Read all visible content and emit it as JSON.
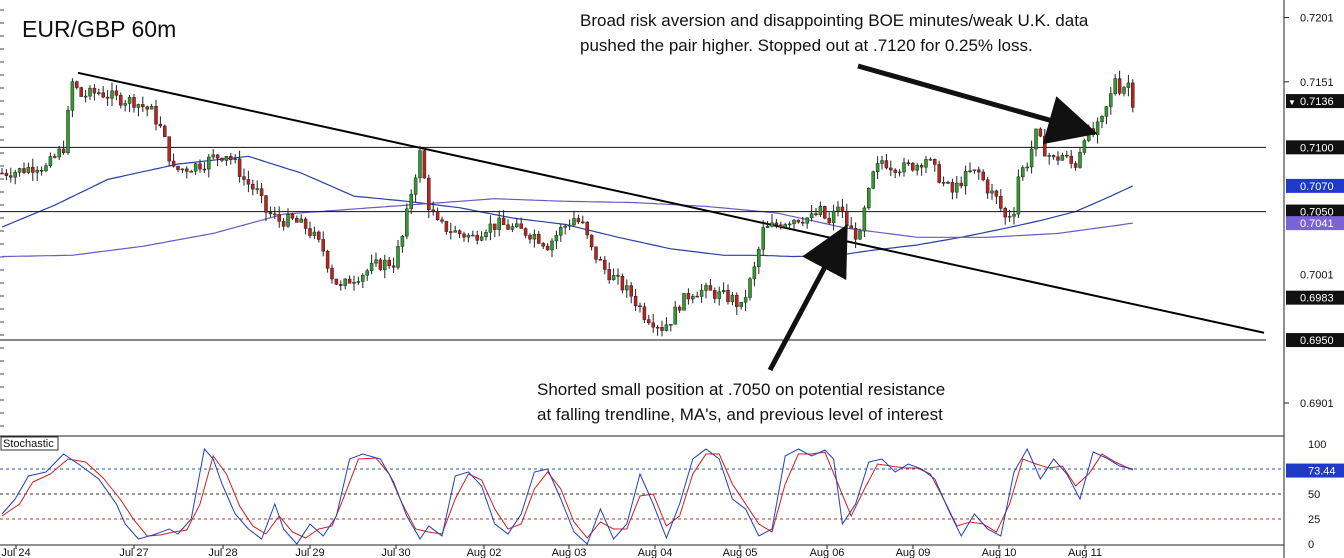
{
  "chart_data": {
    "type": "candlestick",
    "title": "EUR/GBP 60m",
    "price_axis": {
      "ylim": [
        0.688,
        0.721
      ],
      "ticks": [
        "0.7201",
        "0.7151",
        "0.6901"
      ],
      "tick_values": [
        0.7201,
        0.7151,
        0.6901
      ],
      "labels": [
        {
          "text": "0.7136",
          "value": 0.7136,
          "style": "current"
        },
        {
          "text": "0.7100",
          "value": 0.71,
          "style": "level"
        },
        {
          "text": "0.7070",
          "value": 0.707,
          "style": "ma"
        },
        {
          "text": "0.7050",
          "value": 0.705,
          "style": "level"
        },
        {
          "text": "0.7041",
          "value": 0.7041,
          "style": "ma2"
        },
        {
          "text": "0.7001",
          "value": 0.7001,
          "style": "tick"
        },
        {
          "text": "0.6983",
          "value": 0.6983,
          "style": "level"
        },
        {
          "text": "0.6950",
          "value": 0.695,
          "style": "level"
        }
      ]
    },
    "dates": [
      "Jul 24",
      "Jul 27",
      "Jul 28",
      "Jul 29",
      "Jul 30",
      "Aug 02",
      "Aug 03",
      "Aug 04",
      "Aug 05",
      "Aug 06",
      "Aug 09",
      "Aug 10",
      "Aug 11"
    ],
    "horizontal_levels": [
      0.71,
      0.705,
      0.695
    ],
    "trendline": {
      "from_date": "Jul 24",
      "from_price": 0.7158,
      "to_date": "Aug 11",
      "to_price": 0.6965
    },
    "price_path": [
      [
        0,
        0.708
      ],
      [
        4,
        0.7082
      ],
      [
        8,
        0.7086
      ],
      [
        10,
        0.7084
      ],
      [
        12,
        0.7092
      ],
      [
        14,
        0.71
      ],
      [
        16,
        0.715
      ],
      [
        18,
        0.714
      ],
      [
        22,
        0.7143
      ],
      [
        26,
        0.7138
      ],
      [
        30,
        0.7136
      ],
      [
        34,
        0.7128
      ],
      [
        36,
        0.7115
      ],
      [
        37,
        0.7105
      ],
      [
        39,
        0.7082
      ],
      [
        42,
        0.7084
      ],
      [
        46,
        0.7088
      ],
      [
        48,
        0.7092
      ],
      [
        51,
        0.7095
      ],
      [
        53,
        0.7087
      ],
      [
        55,
        0.7075
      ],
      [
        58,
        0.7065
      ],
      [
        60,
        0.705
      ],
      [
        63,
        0.7043
      ],
      [
        66,
        0.7043
      ],
      [
        69,
        0.7038
      ],
      [
        71,
        0.703
      ],
      [
        73,
        0.702
      ],
      [
        75,
        0.7
      ],
      [
        77,
        0.699
      ],
      [
        79,
        0.6997
      ],
      [
        82,
        0.7002
      ],
      [
        85,
        0.7008
      ],
      [
        87,
        0.701
      ],
      [
        89,
        0.701
      ],
      [
        91,
        0.703
      ],
      [
        93,
        0.7065
      ],
      [
        95,
        0.7095
      ],
      [
        97,
        0.7055
      ],
      [
        99,
        0.704
      ],
      [
        103,
        0.7034
      ],
      [
        107,
        0.703
      ],
      [
        110,
        0.7038
      ],
      [
        113,
        0.704
      ],
      [
        117,
        0.7036
      ],
      [
        121,
        0.7032
      ],
      [
        124,
        0.7024
      ],
      [
        127,
        0.7036
      ],
      [
        130,
        0.7045
      ],
      [
        132,
        0.7039
      ],
      [
        134,
        0.702
      ],
      [
        137,
        0.7005
      ],
      [
        140,
        0.6995
      ],
      [
        143,
        0.6985
      ],
      [
        146,
        0.697
      ],
      [
        150,
        0.696
      ],
      [
        152,
        0.6966
      ],
      [
        154,
        0.6978
      ],
      [
        157,
        0.6988
      ],
      [
        160,
        0.6988
      ],
      [
        163,
        0.6985
      ],
      [
        166,
        0.6982
      ],
      [
        168,
        0.6975
      ],
      [
        169,
        0.6985
      ],
      [
        171,
        0.7005
      ],
      [
        173,
        0.7035
      ],
      [
        176,
        0.704
      ],
      [
        180,
        0.7045
      ],
      [
        184,
        0.7045
      ],
      [
        186,
        0.705
      ],
      [
        188,
        0.704
      ],
      [
        190,
        0.7055
      ],
      [
        192,
        0.704
      ],
      [
        193,
        0.7035
      ],
      [
        195,
        0.703
      ],
      [
        196,
        0.705
      ],
      [
        198,
        0.7078
      ],
      [
        200,
        0.709
      ],
      [
        202,
        0.7086
      ],
      [
        205,
        0.7084
      ],
      [
        208,
        0.7087
      ],
      [
        210,
        0.7092
      ],
      [
        212,
        0.7082
      ],
      [
        214,
        0.7072
      ],
      [
        216,
        0.7065
      ],
      [
        218,
        0.7074
      ],
      [
        220,
        0.708
      ],
      [
        222,
        0.708
      ],
      [
        224,
        0.7068
      ],
      [
        226,
        0.706
      ],
      [
        228,
        0.7045
      ],
      [
        230,
        0.7052
      ],
      [
        231,
        0.7078
      ],
      [
        233,
        0.7088
      ],
      [
        235,
        0.711
      ],
      [
        237,
        0.7098
      ],
      [
        239,
        0.709
      ],
      [
        241,
        0.7094
      ],
      [
        243,
        0.7087
      ],
      [
        244,
        0.7087
      ],
      [
        246,
        0.711
      ],
      [
        248,
        0.711
      ],
      [
        250,
        0.712
      ],
      [
        252,
        0.714
      ],
      [
        253,
        0.7155
      ],
      [
        254,
        0.7146
      ],
      [
        256,
        0.715
      ],
      [
        257,
        0.7136
      ]
    ],
    "ma_fast": {
      "name": "",
      "color": "#2a3fa8",
      "path": [
        [
          0,
          0.7038
        ],
        [
          12,
          0.7055
        ],
        [
          24,
          0.7075
        ],
        [
          40,
          0.7087
        ],
        [
          56,
          0.7093
        ],
        [
          68,
          0.708
        ],
        [
          80,
          0.7062
        ],
        [
          92,
          0.7058
        ],
        [
          104,
          0.7053
        ],
        [
          116,
          0.7045
        ],
        [
          128,
          0.704
        ],
        [
          140,
          0.703
        ],
        [
          152,
          0.7021
        ],
        [
          164,
          0.7016
        ],
        [
          172,
          0.7016
        ],
        [
          180,
          0.7015
        ],
        [
          190,
          0.7016
        ],
        [
          198,
          0.702
        ],
        [
          208,
          0.7024
        ],
        [
          218,
          0.703
        ],
        [
          228,
          0.7037
        ],
        [
          236,
          0.7043
        ],
        [
          244,
          0.705
        ],
        [
          252,
          0.7062
        ],
        [
          257,
          0.707
        ]
      ]
    },
    "ma_slow": {
      "name": "",
      "color": "#6a58c8",
      "path": [
        [
          0,
          0.7015
        ],
        [
          16,
          0.7016
        ],
        [
          32,
          0.7023
        ],
        [
          48,
          0.7033
        ],
        [
          64,
          0.7048
        ],
        [
          80,
          0.7052
        ],
        [
          96,
          0.7056
        ],
        [
          112,
          0.706
        ],
        [
          128,
          0.7058
        ],
        [
          144,
          0.7057
        ],
        [
          160,
          0.7054
        ],
        [
          176,
          0.7049
        ],
        [
          192,
          0.7037
        ],
        [
          208,
          0.703
        ],
        [
          224,
          0.703
        ],
        [
          240,
          0.7033
        ],
        [
          257,
          0.7041
        ]
      ]
    },
    "stochastic": {
      "label": "Stochastic",
      "ticks": [
        "100",
        "50",
        "25",
        "0"
      ],
      "tick_values": [
        100,
        50,
        25,
        0
      ],
      "current_text": "73.44",
      "current_value": 73.44,
      "levels": [
        75,
        50,
        25
      ],
      "k_path": [
        [
          0,
          30
        ],
        [
          3,
          45
        ],
        [
          6,
          68
        ],
        [
          10,
          72
        ],
        [
          14,
          90
        ],
        [
          18,
          78
        ],
        [
          22,
          65
        ],
        [
          26,
          40
        ],
        [
          28,
          20
        ],
        [
          31,
          5
        ],
        [
          35,
          10
        ],
        [
          38,
          15
        ],
        [
          40,
          10
        ],
        [
          43,
          25
        ],
        [
          46,
          95
        ],
        [
          48,
          85
        ],
        [
          50,
          60
        ],
        [
          53,
          30
        ],
        [
          56,
          15
        ],
        [
          59,
          5
        ],
        [
          62,
          40
        ],
        [
          64,
          15
        ],
        [
          67,
          0
        ],
        [
          70,
          20
        ],
        [
          73,
          8
        ],
        [
          76,
          28
        ],
        [
          79,
          85
        ],
        [
          82,
          90
        ],
        [
          86,
          85
        ],
        [
          89,
          62
        ],
        [
          92,
          28
        ],
        [
          95,
          5
        ],
        [
          97,
          18
        ],
        [
          100,
          8
        ],
        [
          103,
          68
        ],
        [
          106,
          72
        ],
        [
          109,
          58
        ],
        [
          112,
          20
        ],
        [
          115,
          10
        ],
        [
          118,
          30
        ],
        [
          121,
          72
        ],
        [
          124,
          75
        ],
        [
          127,
          45
        ],
        [
          130,
          12
        ],
        [
          133,
          0
        ],
        [
          136,
          35
        ],
        [
          139,
          5
        ],
        [
          142,
          20
        ],
        [
          145,
          70
        ],
        [
          148,
          40
        ],
        [
          151,
          6
        ],
        [
          154,
          40
        ],
        [
          157,
          85
        ],
        [
          160,
          95
        ],
        [
          163,
          85
        ],
        [
          166,
          45
        ],
        [
          169,
          35
        ],
        [
          172,
          8
        ],
        [
          175,
          15
        ],
        [
          178,
          88
        ],
        [
          181,
          95
        ],
        [
          184,
          88
        ],
        [
          187,
          94
        ],
        [
          189,
          85
        ],
        [
          191,
          20
        ],
        [
          194,
          40
        ],
        [
          197,
          82
        ],
        [
          200,
          85
        ],
        [
          203,
          72
        ],
        [
          206,
          80
        ],
        [
          209,
          75
        ],
        [
          212,
          65
        ],
        [
          215,
          35
        ],
        [
          218,
          8
        ],
        [
          221,
          30
        ],
        [
          224,
          15
        ],
        [
          227,
          8
        ],
        [
          230,
          72
        ],
        [
          233,
          95
        ],
        [
          236,
          65
        ],
        [
          239,
          85
        ],
        [
          242,
          70
        ],
        [
          245,
          45
        ],
        [
          248,
          92
        ],
        [
          251,
          86
        ],
        [
          254,
          78
        ],
        [
          257,
          75
        ]
      ],
      "d_path": [
        [
          0,
          28
        ],
        [
          4,
          40
        ],
        [
          7,
          62
        ],
        [
          11,
          70
        ],
        [
          15,
          85
        ],
        [
          19,
          82
        ],
        [
          23,
          66
        ],
        [
          27,
          44
        ],
        [
          30,
          24
        ],
        [
          33,
          8
        ],
        [
          36,
          9
        ],
        [
          39,
          12
        ],
        [
          42,
          14
        ],
        [
          45,
          40
        ],
        [
          48,
          88
        ],
        [
          51,
          70
        ],
        [
          54,
          38
        ],
        [
          57,
          18
        ],
        [
          60,
          10
        ],
        [
          63,
          28
        ],
        [
          66,
          12
        ],
        [
          69,
          6
        ],
        [
          72,
          15
        ],
        [
          75,
          18
        ],
        [
          78,
          50
        ],
        [
          81,
          85
        ],
        [
          85,
          86
        ],
        [
          88,
          70
        ],
        [
          91,
          40
        ],
        [
          94,
          15
        ],
        [
          97,
          12
        ],
        [
          100,
          10
        ],
        [
          103,
          45
        ],
        [
          106,
          70
        ],
        [
          109,
          64
        ],
        [
          112,
          35
        ],
        [
          115,
          15
        ],
        [
          118,
          20
        ],
        [
          121,
          55
        ],
        [
          124,
          72
        ],
        [
          127,
          55
        ],
        [
          130,
          22
        ],
        [
          133,
          6
        ],
        [
          136,
          22
        ],
        [
          139,
          15
        ],
        [
          142,
          15
        ],
        [
          145,
          48
        ],
        [
          148,
          50
        ],
        [
          151,
          18
        ],
        [
          154,
          28
        ],
        [
          157,
          70
        ],
        [
          160,
          90
        ],
        [
          163,
          90
        ],
        [
          166,
          60
        ],
        [
          169,
          40
        ],
        [
          172,
          20
        ],
        [
          175,
          12
        ],
        [
          178,
          60
        ],
        [
          181,
          90
        ],
        [
          184,
          90
        ],
        [
          187,
          92
        ],
        [
          190,
          60
        ],
        [
          193,
          28
        ],
        [
          196,
          55
        ],
        [
          199,
          80
        ],
        [
          202,
          78
        ],
        [
          205,
          76
        ],
        [
          208,
          76
        ],
        [
          211,
          70
        ],
        [
          214,
          45
        ],
        [
          217,
          18
        ],
        [
          220,
          22
        ],
        [
          223,
          20
        ],
        [
          226,
          12
        ],
        [
          229,
          40
        ],
        [
          232,
          85
        ],
        [
          235,
          80
        ],
        [
          238,
          76
        ],
        [
          241,
          78
        ],
        [
          244,
          58
        ],
        [
          247,
          70
        ],
        [
          250,
          90
        ],
        [
          253,
          82
        ],
        [
          257,
          74
        ]
      ]
    }
  },
  "annotations": {
    "top_line1": "Broad risk aversion and disappointing BOE minutes/weak U.K. data",
    "top_line2": "pushed the pair higher.  Stopped out at .7120 for 0.25% loss.",
    "bottom_line1": "Shorted small position at .7050 on potential resistance",
    "bottom_line2": "at falling trendline, MA's, and previous level of interest"
  }
}
